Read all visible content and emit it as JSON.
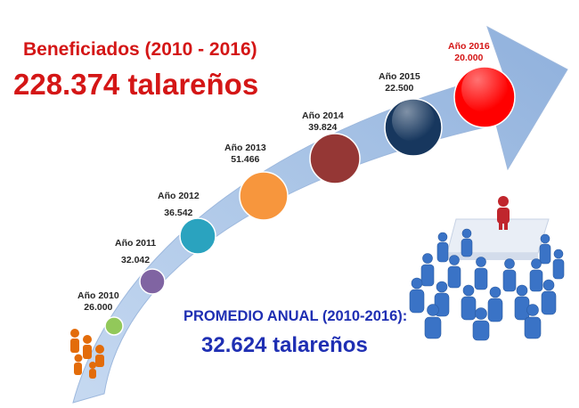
{
  "header": {
    "line1": "Beneficiados (2010 - 2016)",
    "line2": "228.374 talareños"
  },
  "average": {
    "line1": "PROMEDIO ANUAL (2010-2016):",
    "line2": "32.624 talareños"
  },
  "years": [
    {
      "label": "Año 2010",
      "value": "26.000",
      "color": "#92c85a"
    },
    {
      "label": "Año 2011",
      "value": "32.042",
      "color": "#8064a2"
    },
    {
      "label": "Año 2012",
      "value": "36.542",
      "color": "#2aa3bf"
    },
    {
      "label": "Año 2013",
      "value": "51.466",
      "color": "#f7963d"
    },
    {
      "label": "Año 2014",
      "value": "39.824",
      "color": "#953735"
    },
    {
      "label": "Año 2015",
      "value": "22.500",
      "color": "#17375e"
    },
    {
      "label": "Año 2016",
      "value": "20.000",
      "color": "#ff0000"
    }
  ],
  "icons": [
    "people-group-icon",
    "crowd-leader-icon"
  ]
}
